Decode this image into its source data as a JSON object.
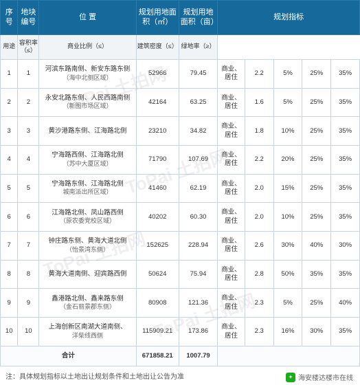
{
  "watermark_text": "ToPai 土拍网",
  "header": {
    "seq": "序号",
    "block": "地块编号",
    "location": "位 置",
    "area_m2": "规划用地面积（㎡）",
    "area_mu": "规划用地面积（亩）",
    "metrics": "规划指标",
    "sub": {
      "use": "用途",
      "far": "容积率（≤）",
      "biz": "商业比例（≤）",
      "density": "建筑密度（≤）",
      "green": "绿地率（≥）"
    }
  },
  "rows": [
    {
      "seq": "1",
      "block": "1",
      "loc_main": "河滨东路南侧、新安东路东侧",
      "loc_sub": "（海中北侧区域）",
      "area_m2": "52966",
      "area_mu": "79.45",
      "use": "商业、居住",
      "far": "2.2",
      "biz": "5%",
      "density": "25%",
      "green": "35%"
    },
    {
      "seq": "2",
      "block": "2",
      "loc_main": "永安北路东侧、人民西路南侧",
      "loc_sub": "（新图市场区域）",
      "area_m2": "42164",
      "area_mu": "63.25",
      "use": "商业、居住",
      "far": "1.6",
      "biz": "5%",
      "density": "25%",
      "green": "35%"
    },
    {
      "seq": "3",
      "block": "3",
      "loc_main": "黄沙港路东侧、江海路北侧",
      "loc_sub": "",
      "area_m2": "23210",
      "area_mu": "34.82",
      "use": "商业、居住",
      "far": "1.8",
      "biz": "10%",
      "density": "25%",
      "green": "35%"
    },
    {
      "seq": "4",
      "block": "4",
      "loc_main": "宁海路西侧、江海路北侧",
      "loc_sub": "（苏中大厦区域）",
      "area_m2": "71790",
      "area_mu": "107.69",
      "use": "商业、居住",
      "far": "2.2",
      "biz": "20%",
      "density": "25%",
      "green": "35%"
    },
    {
      "seq": "5",
      "block": "5",
      "loc_main": "宁海路东侧、江海路北侧",
      "loc_sub": "城南派出所区域）",
      "area_m2": "41460",
      "area_mu": "62.19",
      "use": "商业、居住",
      "far": "2.0",
      "biz": "15%",
      "density": "25%",
      "green": "35%"
    },
    {
      "seq": "6",
      "block": "6",
      "loc_main": "江海路北侧、凤山路西侧",
      "loc_sub": "（原农委党校区域）",
      "area_m2": "40202",
      "area_mu": "60.30",
      "use": "商业、居住",
      "far": "2.0",
      "biz": "10%",
      "density": "25%",
      "green": "35%"
    },
    {
      "seq": "7",
      "block": "7",
      "loc_main": "钟庄路东侧、黄海大道北侧",
      "loc_sub": "（怡景湾东侧）",
      "area_m2": "152625",
      "area_mu": "228.94",
      "use": "商业、居住",
      "far": "2.6",
      "biz": "30%",
      "density": "40%",
      "green": "30%"
    },
    {
      "seq": "8",
      "block": "8",
      "loc_main": "黄海大道南侧、迎宾路西侧",
      "loc_sub": "",
      "area_m2": "50624",
      "area_mu": "75.94",
      "use": "商业、居住",
      "far": "2.8",
      "biz": "50%",
      "density": "35%",
      "green": "35%"
    },
    {
      "seq": "9",
      "block": "9",
      "loc_main": "鑫港路北侧、鑫来路东侧",
      "loc_sub": "（金石丽景郡东侧）",
      "area_m2": "80908",
      "area_mu": "121.36",
      "use": "商业、居住",
      "far": "2.3",
      "biz": "5%",
      "density": "25%",
      "green": "40%"
    },
    {
      "seq": "10",
      "block": "10",
      "loc_main": "上海创新区南湖大道南侧、",
      "loc_sub": "洋柴线西侧",
      "area_m2": "115909.21",
      "area_mu": "173.86",
      "use": "商业、居住",
      "far": "2.3",
      "biz": "16%",
      "density": "30%",
      "green": "35%"
    }
  ],
  "sum": {
    "label": "合计",
    "area_m2": "671858.21",
    "area_mu": "1007.79"
  },
  "footnote": "注：具体规划指标以土地出让规划条件和土地出让公告为准",
  "wechat_label": "海安楼达楼市在线",
  "colors": {
    "header_bg": "#16699b",
    "header_fg": "#ffffff",
    "subheader_bg": "#f0f4f7",
    "border": "#c8d4e0",
    "wechat_green": "#1aad19"
  }
}
